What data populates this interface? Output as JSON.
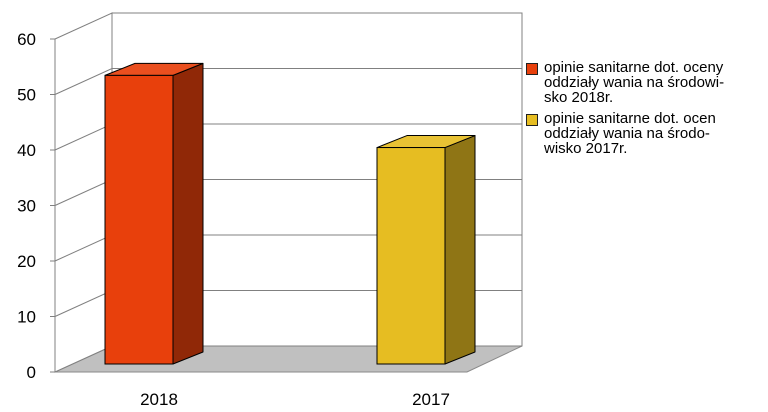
{
  "chart_data": {
    "type": "bar",
    "categories": [
      "2018",
      "2017"
    ],
    "values": [
      52,
      39
    ],
    "colors": [
      "#e8400c",
      "#e6bd22"
    ],
    "ylim": [
      0,
      60
    ],
    "yticks": [
      "0",
      "10",
      "20",
      "30",
      "40",
      "50",
      "60"
    ],
    "grid": true,
    "legend_position": "right",
    "legend": [
      {
        "label": "opinie sanitarne dot. oceny\noddziały wania na środowi-\nsko 2018r.",
        "color": "#e8400c"
      },
      {
        "label": "opinie sanitarne dot. ocen\noddziały wania na środo-\nwisko 2017r.",
        "color": "#e6bd22"
      }
    ]
  }
}
